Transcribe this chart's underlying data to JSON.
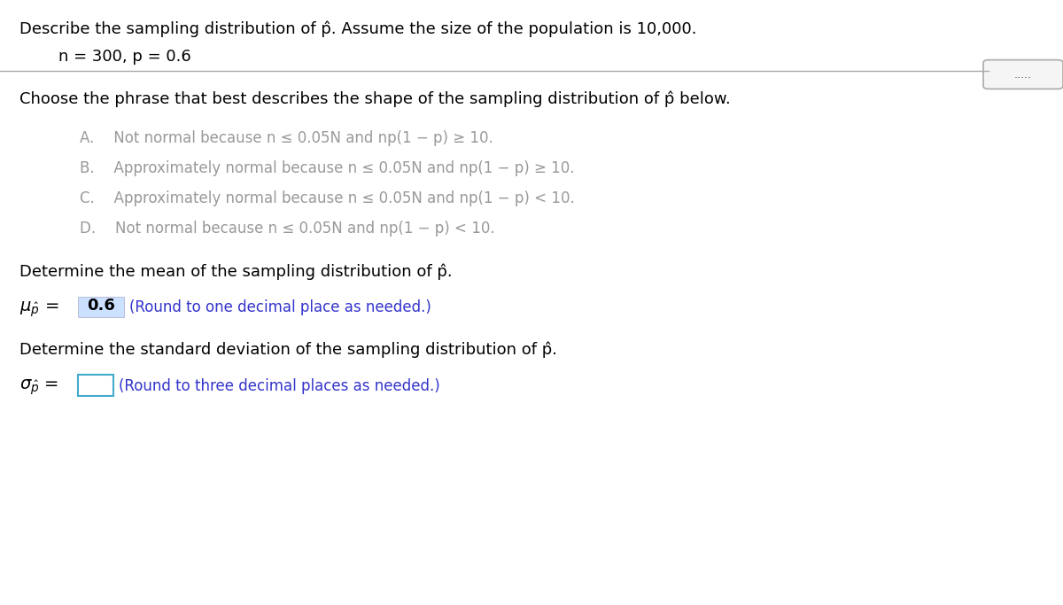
{
  "title_line1": "Describe the sampling distribution of p̂. Assume the size of the population is 10,000.",
  "title_line2": "n = 300, p = 0.6",
  "section2_title": "Choose the phrase that best describes the shape of the sampling distribution of p̂ below.",
  "options": [
    "A.  Not normal because n ≤ 0.05N and np(1 − p) ≥ 10.",
    "B.  Approximately normal because n ≤ 0.05N and np(1 − p) ≥ 10.",
    "C.  Approximately normal because n ≤ 0.05N and np(1 − p) < 10.",
    "D.  Not normal because n ≤ 0.05N and np(1 − p) < 10."
  ],
  "section3_title": "Determine the mean of the sampling distribution of p̂.",
  "mean_label": "μ̂",
  "mean_subscript": "p",
  "mean_value": "0.6",
  "mean_hint": "(Round to one decimal place as needed.)",
  "section4_title": "Determine the standard deviation of the sampling distribution of p̂.",
  "sd_label": "σ̂",
  "sd_subscript": "p",
  "sd_hint": "(Round to three decimal places as needed.)",
  "dots_text": ".....",
  "bg_color": "#ffffff",
  "text_color": "#000000",
  "option_color": "#999999",
  "blue_color": "#3333cc",
  "mean_box_color": "#cce0ff",
  "sd_box_color": "#ffffff",
  "sd_box_border": "#44aacc",
  "font_size_title": 13,
  "font_size_body": 13,
  "font_size_options": 12
}
